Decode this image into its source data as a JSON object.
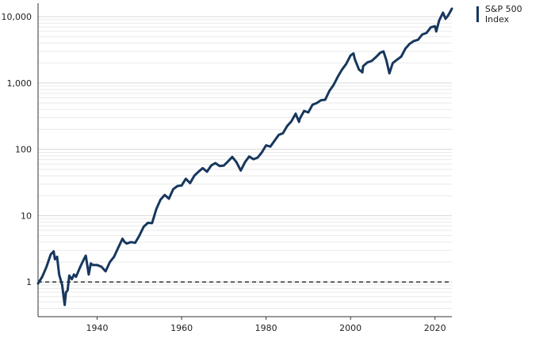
{
  "chart_data": {
    "type": "line",
    "title": "",
    "xlabel": "",
    "ylabel": "",
    "yscale": "log",
    "xlim": [
      1926,
      2024
    ],
    "ylim": [
      0.3,
      16000
    ],
    "x_ticks": [
      1940,
      1960,
      1980,
      2000,
      2020
    ],
    "y_ticks": [
      {
        "value": 1,
        "label": "1"
      },
      {
        "value": 10,
        "label": "10"
      },
      {
        "value": 100,
        "label": "100"
      },
      {
        "value": 1000,
        "label": "1,000"
      },
      {
        "value": 10000,
        "label": "10,000"
      }
    ],
    "grid": "horizontal minor log gridlines",
    "legend_position": "top-right",
    "reference_line": {
      "y": 1,
      "style": "dashed"
    },
    "series": [
      {
        "name": "S&P 500 Index",
        "color": "#17375e",
        "points": [
          [
            1926,
            0.95
          ],
          [
            1927,
            1.2
          ],
          [
            1928,
            1.7
          ],
          [
            1929,
            2.6
          ],
          [
            1929.7,
            2.9
          ],
          [
            1930,
            2.2
          ],
          [
            1930.5,
            2.4
          ],
          [
            1931,
            1.3
          ],
          [
            1931.7,
            0.9
          ],
          [
            1932.3,
            0.45
          ],
          [
            1932.6,
            0.7
          ],
          [
            1933,
            0.75
          ],
          [
            1933.4,
            1.25
          ],
          [
            1934,
            1.1
          ],
          [
            1934.5,
            1.3
          ],
          [
            1935,
            1.2
          ],
          [
            1936,
            1.7
          ],
          [
            1937,
            2.3
          ],
          [
            1937.3,
            2.5
          ],
          [
            1938,
            1.3
          ],
          [
            1938.5,
            1.9
          ],
          [
            1939,
            1.8
          ],
          [
            1940,
            1.8
          ],
          [
            1941,
            1.7
          ],
          [
            1942,
            1.45
          ],
          [
            1943,
            2.0
          ],
          [
            1944,
            2.4
          ],
          [
            1945,
            3.3
          ],
          [
            1946,
            4.5
          ],
          [
            1946.5,
            4.0
          ],
          [
            1947,
            3.8
          ],
          [
            1948,
            4.0
          ],
          [
            1949,
            3.9
          ],
          [
            1950,
            5.0
          ],
          [
            1951,
            6.8
          ],
          [
            1952,
            7.8
          ],
          [
            1953,
            7.7
          ],
          [
            1954,
            12.5
          ],
          [
            1955,
            17.5
          ],
          [
            1956,
            20.5
          ],
          [
            1957,
            18.0
          ],
          [
            1958,
            25.0
          ],
          [
            1959,
            28.0
          ],
          [
            1960,
            28.5
          ],
          [
            1961,
            36.0
          ],
          [
            1962,
            31.0
          ],
          [
            1963,
            40.0
          ],
          [
            1964,
            46.0
          ],
          [
            1965,
            52.0
          ],
          [
            1966,
            46.0
          ],
          [
            1967,
            57.0
          ],
          [
            1968,
            62.0
          ],
          [
            1969,
            56.0
          ],
          [
            1970,
            57.0
          ],
          [
            1971,
            66.0
          ],
          [
            1972,
            77.0
          ],
          [
            1973,
            64.0
          ],
          [
            1974,
            48.0
          ],
          [
            1975,
            64.0
          ],
          [
            1976,
            78.0
          ],
          [
            1977,
            71.0
          ],
          [
            1978,
            75.0
          ],
          [
            1979,
            90.0
          ],
          [
            1980,
            115.0
          ],
          [
            1981,
            110.0
          ],
          [
            1982,
            135.0
          ],
          [
            1983,
            165.0
          ],
          [
            1984,
            175.0
          ],
          [
            1985,
            225.0
          ],
          [
            1986,
            265.0
          ],
          [
            1987,
            345.0
          ],
          [
            1987.8,
            260.0
          ],
          [
            1988,
            290.0
          ],
          [
            1989,
            380.0
          ],
          [
            1990,
            360.0
          ],
          [
            1991,
            470.0
          ],
          [
            1992,
            500.0
          ],
          [
            1993,
            550.0
          ],
          [
            1994,
            560.0
          ],
          [
            1995,
            760.0
          ],
          [
            1996,
            940.0
          ],
          [
            1997,
            1250.0
          ],
          [
            1998,
            1600.0
          ],
          [
            1999,
            1950.0
          ],
          [
            2000,
            2600.0
          ],
          [
            2000.7,
            2800.0
          ],
          [
            2001,
            2300.0
          ],
          [
            2002,
            1600.0
          ],
          [
            2002.8,
            1450.0
          ],
          [
            2003,
            1800.0
          ],
          [
            2004,
            2050.0
          ],
          [
            2005,
            2150.0
          ],
          [
            2006,
            2450.0
          ],
          [
            2007,
            2850.0
          ],
          [
            2007.8,
            3000.0
          ],
          [
            2008.5,
            2200.0
          ],
          [
            2009.2,
            1400.0
          ],
          [
            2010,
            2000.0
          ],
          [
            2011,
            2250.0
          ],
          [
            2012,
            2500.0
          ],
          [
            2013,
            3300.0
          ],
          [
            2014,
            3900.0
          ],
          [
            2015,
            4300.0
          ],
          [
            2016,
            4500.0
          ],
          [
            2017,
            5400.0
          ],
          [
            2018,
            5700.0
          ],
          [
            2019,
            6900.0
          ],
          [
            2020,
            7200.0
          ],
          [
            2020.3,
            6000.0
          ],
          [
            2021,
            8800.0
          ],
          [
            2021.9,
            11500.0
          ],
          [
            2022.5,
            9300.0
          ],
          [
            2023,
            10200.0
          ],
          [
            2023.5,
            11500.0
          ],
          [
            2024,
            13200.0
          ]
        ]
      }
    ]
  }
}
